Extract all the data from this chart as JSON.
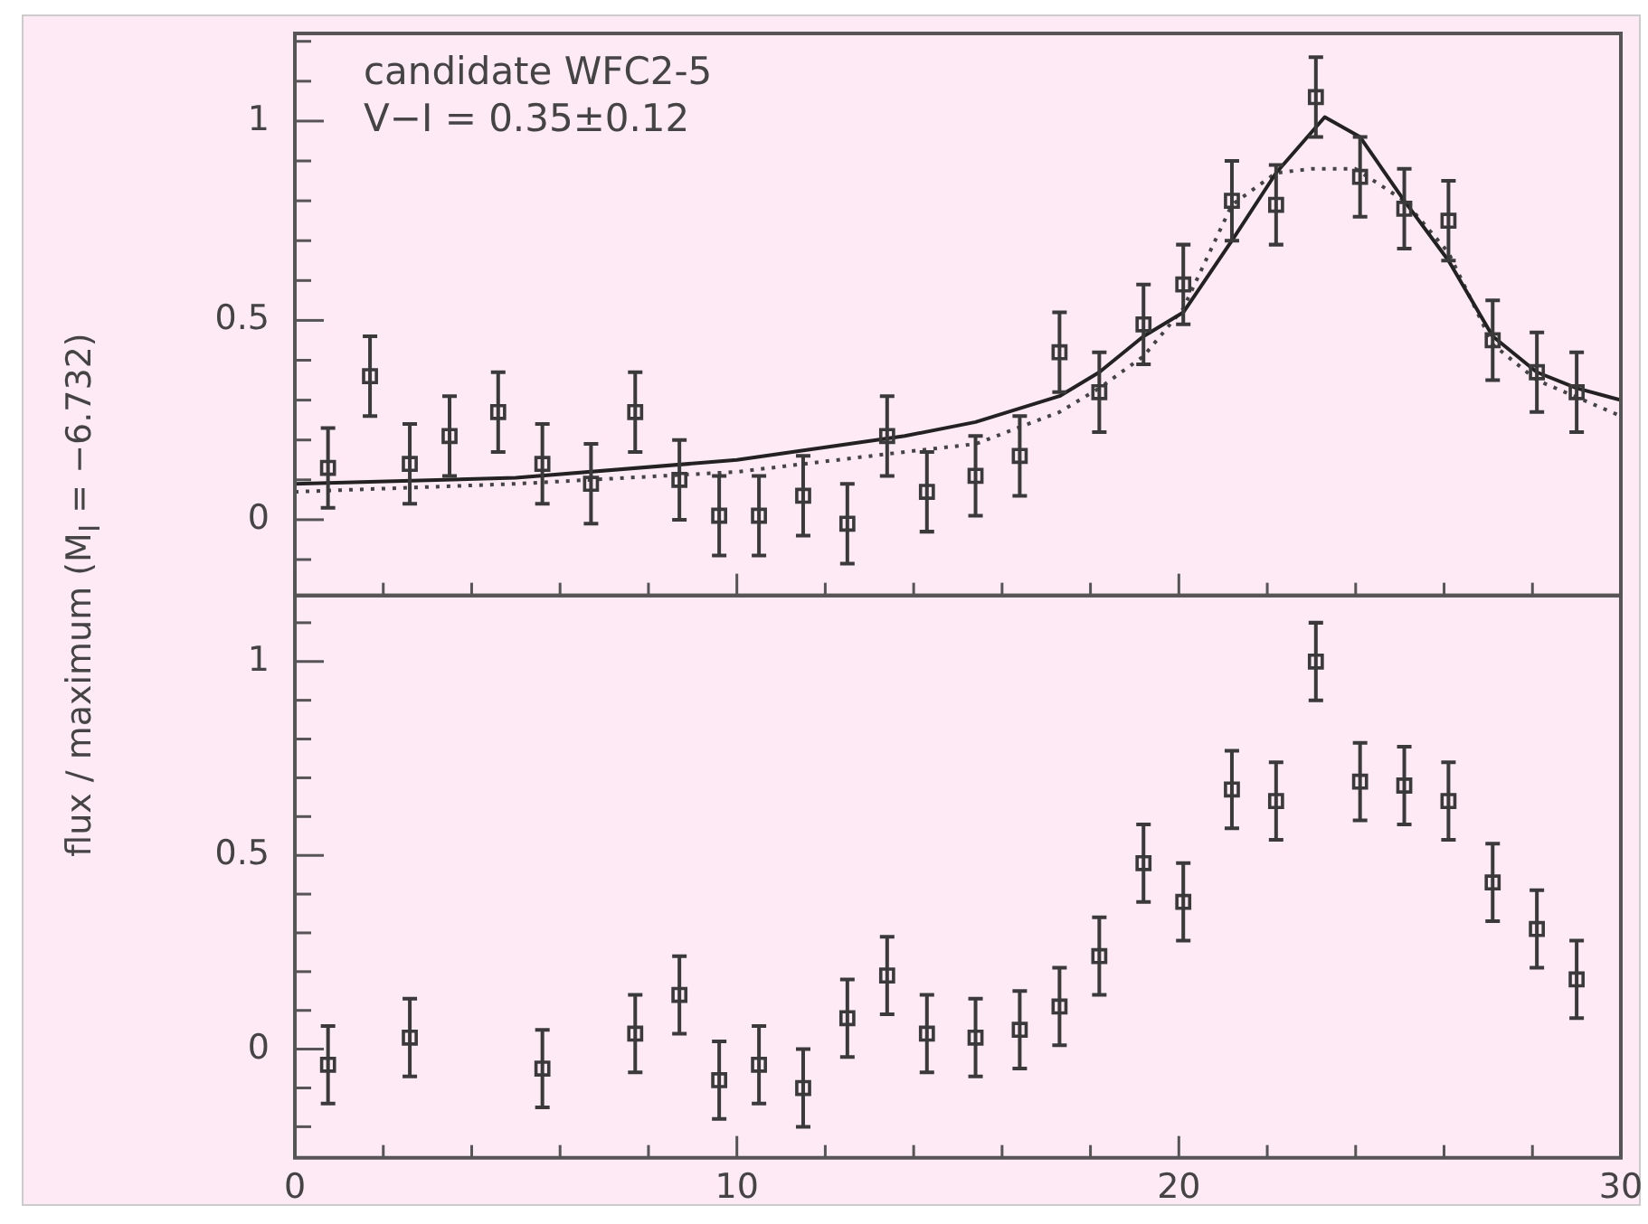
{
  "chart_data": [
    {
      "type": "scatter",
      "ylabel": "flux / maximum (M$_{I}$ = −6.732)",
      "annotations": [
        "candidate WFC2-5",
        "V−I = 0.35±0.12"
      ],
      "xlim": [
        0,
        30
      ],
      "ylim": [
        -0.19,
        1.22
      ],
      "tick_labels": "y",
      "grid": false,
      "legend": false,
      "xticks": [
        0,
        {
          "value": 2,
          "label": null
        },
        {
          "value": 4,
          "label": null
        },
        {
          "value": 6,
          "label": null
        },
        {
          "value": 8,
          "label": null
        },
        10,
        {
          "value": 12,
          "label": null
        },
        {
          "value": 14,
          "label": null
        },
        {
          "value": 16,
          "label": null
        },
        {
          "value": 18,
          "label": null
        },
        20,
        {
          "value": 22,
          "label": null
        },
        {
          "value": 24,
          "label": null
        },
        {
          "value": 26,
          "label": null
        },
        {
          "value": 28,
          "label": null
        },
        30
      ],
      "yticks": [
        {
          "value": -0.1,
          "label": null
        },
        0,
        {
          "value": 0.1,
          "label": null
        },
        {
          "value": 0.2,
          "label": null
        },
        {
          "value": 0.3,
          "label": null
        },
        {
          "value": 0.4,
          "label": null
        },
        0.5,
        {
          "value": 0.6,
          "label": null
        },
        {
          "value": 0.7,
          "label": null
        },
        {
          "value": 0.8,
          "label": null
        },
        {
          "value": 0.9,
          "label": null
        },
        1,
        {
          "value": 1.1,
          "label": null
        },
        {
          "value": 1.2,
          "label": null
        }
      ],
      "series": [
        {
          "type": "scatter",
          "marker": "square",
          "color": "#3a3a3a",
          "x": [
            0.75,
            1.7,
            2.6,
            3.5,
            4.6,
            5.6,
            6.7,
            7.7,
            8.7,
            9.6,
            10.5,
            11.5,
            12.5,
            13.4,
            14.3,
            15.4,
            16.4,
            17.3,
            18.2,
            19.2,
            20.1,
            21.2,
            22.2,
            23.1,
            24.1,
            25.1,
            26.1,
            27.1,
            28.1,
            29.0
          ],
          "values": [
            0.13,
            0.36,
            0.14,
            0.21,
            0.27,
            0.14,
            0.09,
            0.27,
            0.1,
            0.01,
            0.01,
            0.06,
            -0.01,
            0.21,
            0.07,
            0.11,
            0.16,
            0.42,
            0.32,
            0.49,
            0.59,
            0.8,
            0.79,
            1.06,
            0.86,
            0.78,
            0.75,
            0.45,
            0.37,
            0.32
          ],
          "errors": [
            0.1,
            0.1,
            0.1,
            0.1,
            0.1,
            0.1,
            0.1,
            0.1,
            0.1,
            0.1,
            0.1,
            0.1,
            0.1,
            0.1,
            0.1,
            0.1,
            0.1,
            0.1,
            0.1,
            0.1,
            0.1,
            0.1,
            0.1,
            0.1,
            0.1,
            0.1,
            0.1,
            0.1,
            0.1,
            0.1
          ]
        },
        {
          "type": "line",
          "marker": "none",
          "line_style": "solid",
          "color": "#222222",
          "x": [
            0,
            5,
            10,
            13.8,
            15.4,
            17.3,
            18.2,
            19.2,
            20.1,
            21.2,
            22.2,
            23.3,
            24.1,
            25.1,
            26.1,
            27.1,
            28.1,
            29,
            30
          ],
          "values": [
            0.09,
            0.105,
            0.15,
            0.21,
            0.245,
            0.31,
            0.37,
            0.46,
            0.52,
            0.7,
            0.87,
            1.01,
            0.96,
            0.8,
            0.65,
            0.46,
            0.37,
            0.33,
            0.3
          ]
        },
        {
          "type": "line",
          "marker": "none",
          "line_style": "dotted",
          "color": "#444444",
          "x": [
            0,
            5,
            10,
            13.8,
            15.4,
            17.3,
            18.2,
            19.2,
            20.1,
            21.2,
            22.2,
            23,
            24,
            25.1,
            26.1,
            27.1,
            28.1,
            30
          ],
          "values": [
            0.07,
            0.09,
            0.12,
            0.17,
            0.19,
            0.27,
            0.33,
            0.41,
            0.53,
            0.79,
            0.87,
            0.88,
            0.88,
            0.8,
            0.67,
            0.44,
            0.35,
            0.26
          ]
        }
      ]
    },
    {
      "type": "scatter",
      "xlim": [
        0,
        30
      ],
      "ylim": [
        -0.28,
        1.17
      ],
      "grid": false,
      "legend": false,
      "xticks": [
        0,
        {
          "value": 2,
          "label": null
        },
        {
          "value": 4,
          "label": null
        },
        {
          "value": 6,
          "label": null
        },
        {
          "value": 8,
          "label": null
        },
        10,
        {
          "value": 12,
          "label": null
        },
        {
          "value": 14,
          "label": null
        },
        {
          "value": 16,
          "label": null
        },
        {
          "value": 18,
          "label": null
        },
        20,
        {
          "value": 22,
          "label": null
        },
        {
          "value": 24,
          "label": null
        },
        {
          "value": 26,
          "label": null
        },
        {
          "value": 28,
          "label": null
        },
        30
      ],
      "yticks": [
        {
          "value": -0.2,
          "label": null
        },
        {
          "value": -0.1,
          "label": null
        },
        0,
        {
          "value": 0.1,
          "label": null
        },
        {
          "value": 0.2,
          "label": null
        },
        {
          "value": 0.3,
          "label": null
        },
        {
          "value": 0.4,
          "label": null
        },
        0.5,
        {
          "value": 0.6,
          "label": null
        },
        {
          "value": 0.7,
          "label": null
        },
        {
          "value": 0.8,
          "label": null
        },
        {
          "value": 0.9,
          "label": null
        },
        1,
        {
          "value": 1.1,
          "label": null
        }
      ],
      "series": [
        {
          "type": "scatter",
          "marker": "square",
          "color": "#3a3a3a",
          "x": [
            0.75,
            2.6,
            5.6,
            7.7,
            8.7,
            9.6,
            10.5,
            11.5,
            12.5,
            13.4,
            14.3,
            15.4,
            16.4,
            17.3,
            18.2,
            19.2,
            20.1,
            21.2,
            22.2,
            23.1,
            24.1,
            25.1,
            26.1,
            27.1,
            28.1,
            29.0
          ],
          "values": [
            -0.04,
            0.03,
            -0.05,
            0.04,
            0.14,
            -0.08,
            -0.04,
            -0.1,
            0.08,
            0.19,
            0.04,
            0.03,
            0.05,
            0.11,
            0.24,
            0.48,
            0.38,
            0.67,
            0.64,
            1.0,
            0.69,
            0.68,
            0.64,
            0.43,
            0.31,
            0.18
          ],
          "errors": [
            0.1,
            0.1,
            0.1,
            0.1,
            0.1,
            0.1,
            0.1,
            0.1,
            0.1,
            0.1,
            0.1,
            0.1,
            0.1,
            0.1,
            0.1,
            0.1,
            0.1,
            0.1,
            0.1,
            0.1,
            0.1,
            0.1,
            0.1,
            0.1,
            0.1,
            0.1
          ]
        }
      ]
    }
  ]
}
